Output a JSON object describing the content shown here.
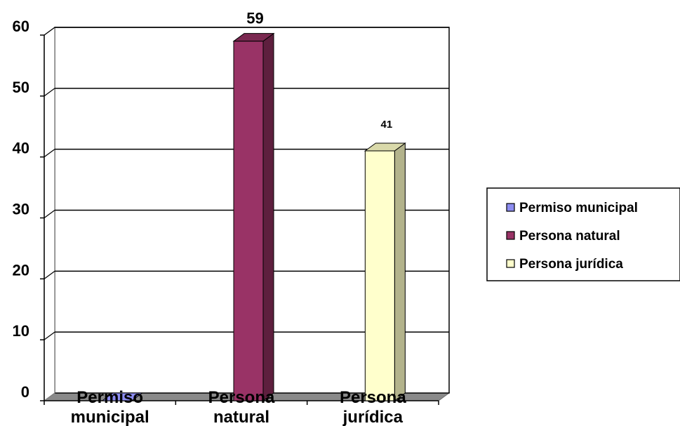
{
  "chart_data": {
    "type": "bar",
    "title": "",
    "xlabel": "",
    "ylabel": "",
    "categories": [
      "Permiso municipal",
      "Persona natural",
      "Persona jurídica"
    ],
    "category_label_lines": [
      [
        "Permiso",
        "municipal"
      ],
      [
        "Persona",
        "natural"
      ],
      [
        "Persona",
        "jurídica"
      ]
    ],
    "values": [
      0,
      59,
      41
    ],
    "data_labels": [
      "",
      "59",
      "41"
    ],
    "ylim": [
      0,
      60
    ],
    "yticks": [
      0,
      10,
      20,
      30,
      40,
      50,
      60
    ],
    "grid": true,
    "legend_position": "right",
    "legend": [
      "Permiso municipal",
      "Persona natural",
      "Persona jurídica"
    ],
    "colors": {
      "front": [
        "#8c8cf0",
        "#993366",
        "#ffffcc"
      ],
      "side": [
        "#5a5aa8",
        "#5e1f3e",
        "#b3b38c"
      ],
      "top": [
        "#7070c8",
        "#7a2850",
        "#d9d9aa"
      ],
      "floor": "#8a8a8a",
      "wall": "#ffffff",
      "grid": "#000000"
    }
  }
}
